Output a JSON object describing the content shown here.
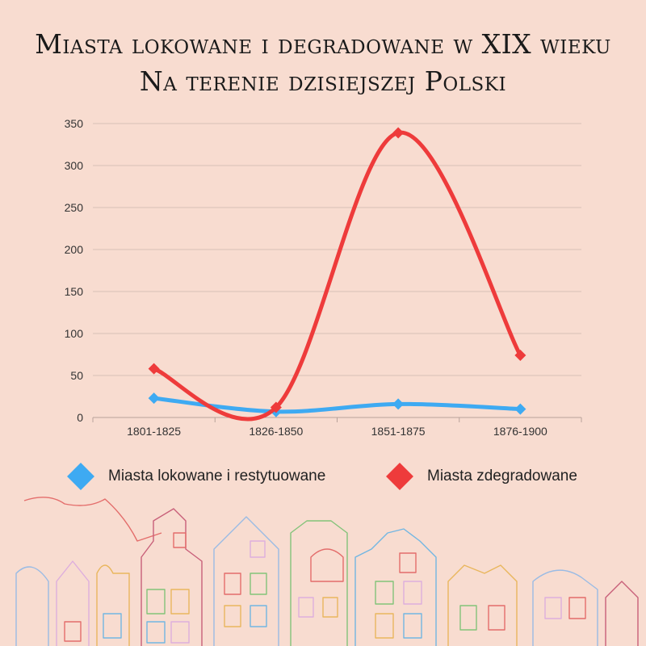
{
  "header": {
    "title_line1": "Miasta lokowane i degradowane w XIX wieku",
    "title_line2": "Na terenie dzisiejszej Polski"
  },
  "chart_data": {
    "type": "line",
    "title": "Miasta lokowane i degradowane w XIX wieku / Na terenie dzisiejszej Polski",
    "categories": [
      "1801-1825",
      "1826-1850",
      "1851-1875",
      "1876-1900"
    ],
    "series": [
      {
        "name": "Miasta lokowane i restytuowane",
        "values": [
          23,
          7,
          16,
          10
        ],
        "color": "#3eaaf2"
      },
      {
        "name": "Miasta zdegradowane",
        "values": [
          58,
          12,
          339,
          74
        ],
        "color": "#ee3b3b"
      }
    ],
    "yticks": [
      "0",
      "50",
      "100",
      "150",
      "200",
      "250",
      "300",
      "350"
    ],
    "ylim": [
      0,
      350
    ],
    "grid": true,
    "smooth": true,
    "legend_position": "bottom",
    "marker": "diamond"
  },
  "legend": {
    "items": [
      {
        "label": "Miasta lokowane i restytuowane",
        "color": "#3eaaf2"
      },
      {
        "label": "Miasta zdegradowane",
        "color": "#ee3b3b"
      }
    ]
  },
  "decoration": {
    "skyline_icon": "townhouse-skyline-illustration"
  }
}
